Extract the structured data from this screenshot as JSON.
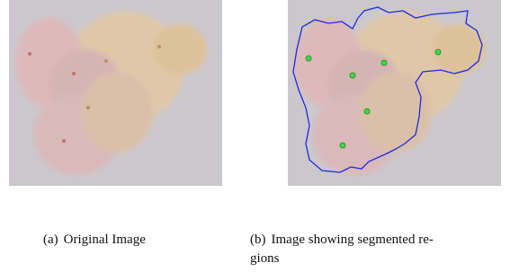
{
  "figure": {
    "subfigures": [
      {
        "label": "(a)",
        "caption_lines": [
          "Original Image"
        ]
      },
      {
        "label": "(b)",
        "caption_lines": [
          "Image showing segmented re-",
          "gions"
        ]
      }
    ]
  }
}
